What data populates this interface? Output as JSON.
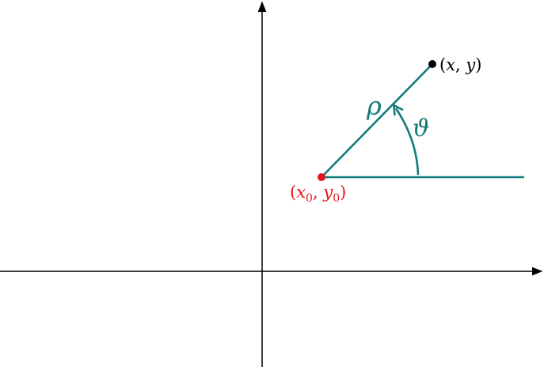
{
  "labels": {
    "point": {
      "open": "(",
      "x": "x",
      "comma": ", ",
      "y": "y",
      "close": ")"
    },
    "origin": {
      "open": "(",
      "x": "x",
      "x_sub": "0",
      "comma": ", ",
      "y": "y",
      "y_sub": "0",
      "close": ")"
    },
    "radius": "ρ",
    "angle": "ϑ"
  },
  "colors": {
    "axes": "#000000",
    "geometry": "#127a7a",
    "origin_point": "#e3161d",
    "point": "#000000"
  }
}
